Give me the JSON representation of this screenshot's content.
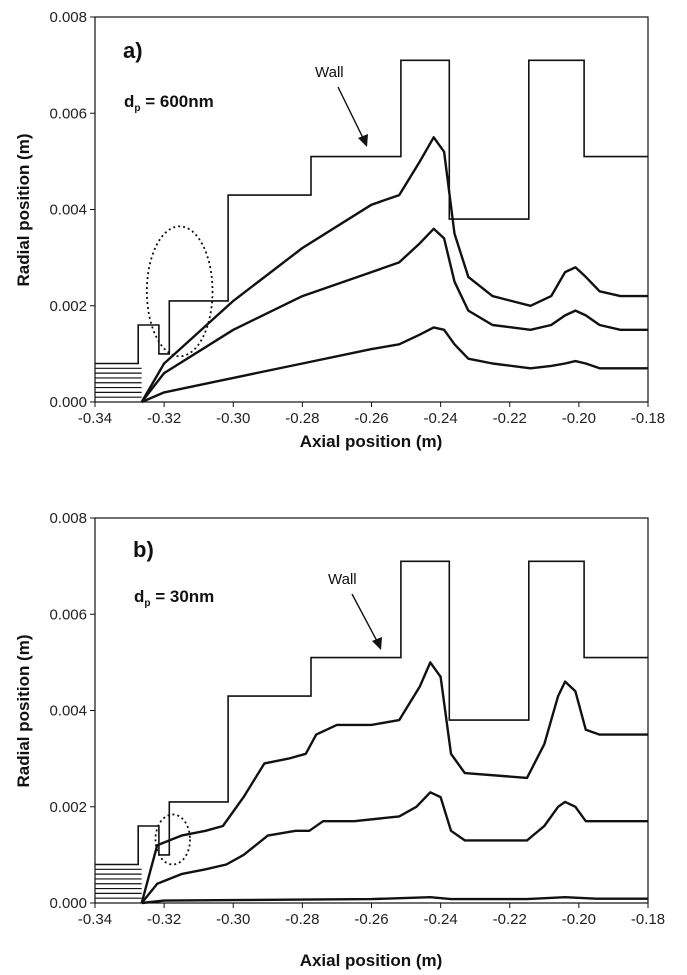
{
  "chart_data": [
    {
      "type": "line",
      "panel_label": "a)",
      "annotation": "d",
      "annotation_sub": "p",
      "annotation_value": " = 600nm",
      "wall_label": "Wall",
      "xlabel": "Axial position (m)",
      "ylabel": "Radial position (m)",
      "xlim": [
        -0.34,
        -0.18
      ],
      "ylim": [
        0,
        0.008
      ],
      "xticks": [
        "-0.34",
        "-0.32",
        "-0.30",
        "-0.28",
        "-0.26",
        "-0.24",
        "-0.22",
        "-0.20",
        "-0.18"
      ],
      "yticks": [
        "0.000",
        "0.002",
        "0.004",
        "0.006",
        "0.008"
      ],
      "wall": [
        [
          -0.34,
          0.0008
        ],
        [
          -0.3275,
          0.0008
        ],
        [
          -0.3275,
          0.0016
        ],
        [
          -0.3215,
          0.0016
        ],
        [
          -0.3215,
          0.001
        ],
        [
          -0.3185,
          0.001
        ],
        [
          -0.3185,
          0.0021
        ],
        [
          -0.3015,
          0.0021
        ],
        [
          -0.3015,
          0.0043
        ],
        [
          -0.2775,
          0.0043
        ],
        [
          -0.2775,
          0.0051
        ],
        [
          -0.2515,
          0.0051
        ],
        [
          -0.2515,
          0.0071
        ],
        [
          -0.2375,
          0.0071
        ],
        [
          -0.2375,
          0.0038
        ],
        [
          -0.2145,
          0.0038
        ],
        [
          -0.2145,
          0.0071
        ],
        [
          -0.1985,
          0.0071
        ],
        [
          -0.1985,
          0.0051
        ],
        [
          -0.18,
          0.0051
        ]
      ],
      "series": [
        {
          "values": [
            [
              -0.3265,
              0
            ],
            [
              -0.32,
              0.0008
            ],
            [
              -0.3,
              0.0021
            ],
            [
              -0.28,
              0.0032
            ],
            [
              -0.26,
              0.0041
            ],
            [
              -0.252,
              0.0043
            ],
            [
              -0.246,
              0.005
            ],
            [
              -0.242,
              0.0055
            ],
            [
              -0.239,
              0.0052
            ],
            [
              -0.236,
              0.0035
            ],
            [
              -0.232,
              0.0026
            ],
            [
              -0.225,
              0.0022
            ],
            [
              -0.214,
              0.002
            ],
            [
              -0.208,
              0.0022
            ],
            [
              -0.204,
              0.0027
            ],
            [
              -0.201,
              0.0028
            ],
            [
              -0.198,
              0.0026
            ],
            [
              -0.194,
              0.0023
            ],
            [
              -0.188,
              0.0022
            ],
            [
              -0.18,
              0.0022
            ]
          ]
        },
        {
          "values": [
            [
              -0.3265,
              0
            ],
            [
              -0.32,
              0.0006
            ],
            [
              -0.3,
              0.0015
            ],
            [
              -0.28,
              0.0022
            ],
            [
              -0.26,
              0.0027
            ],
            [
              -0.252,
              0.0029
            ],
            [
              -0.246,
              0.0033
            ],
            [
              -0.242,
              0.0036
            ],
            [
              -0.239,
              0.0034
            ],
            [
              -0.236,
              0.0025
            ],
            [
              -0.232,
              0.0019
            ],
            [
              -0.225,
              0.0016
            ],
            [
              -0.214,
              0.0015
            ],
            [
              -0.208,
              0.0016
            ],
            [
              -0.204,
              0.0018
            ],
            [
              -0.201,
              0.0019
            ],
            [
              -0.198,
              0.0018
            ],
            [
              -0.194,
              0.0016
            ],
            [
              -0.188,
              0.0015
            ],
            [
              -0.18,
              0.0015
            ]
          ]
        },
        {
          "values": [
            [
              -0.3265,
              0
            ],
            [
              -0.32,
              0.0002
            ],
            [
              -0.3,
              0.0005
            ],
            [
              -0.28,
              0.0008
            ],
            [
              -0.26,
              0.0011
            ],
            [
              -0.252,
              0.0012
            ],
            [
              -0.246,
              0.0014
            ],
            [
              -0.242,
              0.00155
            ],
            [
              -0.239,
              0.0015
            ],
            [
              -0.236,
              0.0012
            ],
            [
              -0.232,
              0.0009
            ],
            [
              -0.225,
              0.0008
            ],
            [
              -0.214,
              0.0007
            ],
            [
              -0.208,
              0.00075
            ],
            [
              -0.204,
              0.0008
            ],
            [
              -0.201,
              0.00085
            ],
            [
              -0.198,
              0.0008
            ],
            [
              -0.194,
              0.0007
            ],
            [
              -0.188,
              0.0007
            ],
            [
              -0.18,
              0.0007
            ]
          ]
        }
      ],
      "inlet_lines_y": [
        0.0001,
        0.0002,
        0.0003,
        0.0004,
        0.0005,
        0.0006,
        0.0007
      ],
      "circle": {
        "cx": -0.3155,
        "cy": 0.0023,
        "rx": 0.0095,
        "ry": 0.00135
      }
    },
    {
      "type": "line",
      "panel_label": "b)",
      "annotation": "d",
      "annotation_sub": "p",
      "annotation_value": " = 30nm",
      "wall_label": "Wall",
      "xlabel": "Axial position (m)",
      "ylabel": "Radial position (m)",
      "xlim": [
        -0.34,
        -0.18
      ],
      "ylim": [
        0,
        0.008
      ],
      "xticks": [
        "-0.34",
        "-0.32",
        "-0.30",
        "-0.28",
        "-0.26",
        "-0.24",
        "-0.22",
        "-0.20",
        "-0.18"
      ],
      "yticks": [
        "0.000",
        "0.002",
        "0.004",
        "0.006",
        "0.008"
      ],
      "wall": [
        [
          -0.34,
          0.0008
        ],
        [
          -0.3275,
          0.0008
        ],
        [
          -0.3275,
          0.0016
        ],
        [
          -0.3215,
          0.0016
        ],
        [
          -0.3215,
          0.001
        ],
        [
          -0.3185,
          0.001
        ],
        [
          -0.3185,
          0.0021
        ],
        [
          -0.3015,
          0.0021
        ],
        [
          -0.3015,
          0.0043
        ],
        [
          -0.2775,
          0.0043
        ],
        [
          -0.2775,
          0.0051
        ],
        [
          -0.2515,
          0.0051
        ],
        [
          -0.2515,
          0.0071
        ],
        [
          -0.2375,
          0.0071
        ],
        [
          -0.2375,
          0.0038
        ],
        [
          -0.2145,
          0.0038
        ],
        [
          -0.2145,
          0.0071
        ],
        [
          -0.1985,
          0.0071
        ],
        [
          -0.1985,
          0.0051
        ],
        [
          -0.18,
          0.0051
        ]
      ],
      "series": [
        {
          "values": [
            [
              -0.3265,
              0
            ],
            [
              -0.322,
              0.0012
            ],
            [
              -0.315,
              0.0014
            ],
            [
              -0.308,
              0.0015
            ],
            [
              -0.303,
              0.0016
            ],
            [
              -0.297,
              0.0022
            ],
            [
              -0.291,
              0.0029
            ],
            [
              -0.284,
              0.003
            ],
            [
              -0.279,
              0.0031
            ],
            [
              -0.276,
              0.0035
            ],
            [
              -0.27,
              0.0037
            ],
            [
              -0.26,
              0.0037
            ],
            [
              -0.252,
              0.0038
            ],
            [
              -0.246,
              0.0045
            ],
            [
              -0.243,
              0.005
            ],
            [
              -0.24,
              0.0047
            ],
            [
              -0.237,
              0.0031
            ],
            [
              -0.233,
              0.0027
            ],
            [
              -0.215,
              0.0026
            ],
            [
              -0.21,
              0.0033
            ],
            [
              -0.206,
              0.0043
            ],
            [
              -0.204,
              0.0046
            ],
            [
              -0.201,
              0.0044
            ],
            [
              -0.198,
              0.0036
            ],
            [
              -0.194,
              0.0035
            ],
            [
              -0.18,
              0.0035
            ]
          ]
        },
        {
          "values": [
            [
              -0.3265,
              0
            ],
            [
              -0.322,
              0.0004
            ],
            [
              -0.315,
              0.0006
            ],
            [
              -0.308,
              0.0007
            ],
            [
              -0.302,
              0.0008
            ],
            [
              -0.297,
              0.001
            ],
            [
              -0.29,
              0.0014
            ],
            [
              -0.282,
              0.0015
            ],
            [
              -0.278,
              0.0015
            ],
            [
              -0.274,
              0.0017
            ],
            [
              -0.265,
              0.0017
            ],
            [
              -0.252,
              0.0018
            ],
            [
              -0.247,
              0.002
            ],
            [
              -0.243,
              0.0023
            ],
            [
              -0.24,
              0.0022
            ],
            [
              -0.237,
              0.0015
            ],
            [
              -0.233,
              0.0013
            ],
            [
              -0.215,
              0.0013
            ],
            [
              -0.21,
              0.0016
            ],
            [
              -0.206,
              0.002
            ],
            [
              -0.204,
              0.0021
            ],
            [
              -0.201,
              0.002
            ],
            [
              -0.198,
              0.0017
            ],
            [
              -0.194,
              0.0017
            ],
            [
              -0.18,
              0.0017
            ]
          ]
        },
        {
          "values": [
            [
              -0.3265,
              0
            ],
            [
              -0.32,
              5e-05
            ],
            [
              -0.3,
              6e-05
            ],
            [
              -0.26,
              8e-05
            ],
            [
              -0.243,
              0.00012
            ],
            [
              -0.237,
              8e-05
            ],
            [
              -0.215,
              8e-05
            ],
            [
              -0.204,
              0.00012
            ],
            [
              -0.195,
              9e-05
            ],
            [
              -0.18,
              9e-05
            ]
          ]
        }
      ],
      "inlet_lines_y": [
        0.0001,
        0.0002,
        0.0003,
        0.0004,
        0.0005,
        0.0006,
        0.0007
      ],
      "circle": {
        "cx": -0.3175,
        "cy": 0.00132,
        "rx": 0.005,
        "ry": 0.00052
      }
    }
  ]
}
